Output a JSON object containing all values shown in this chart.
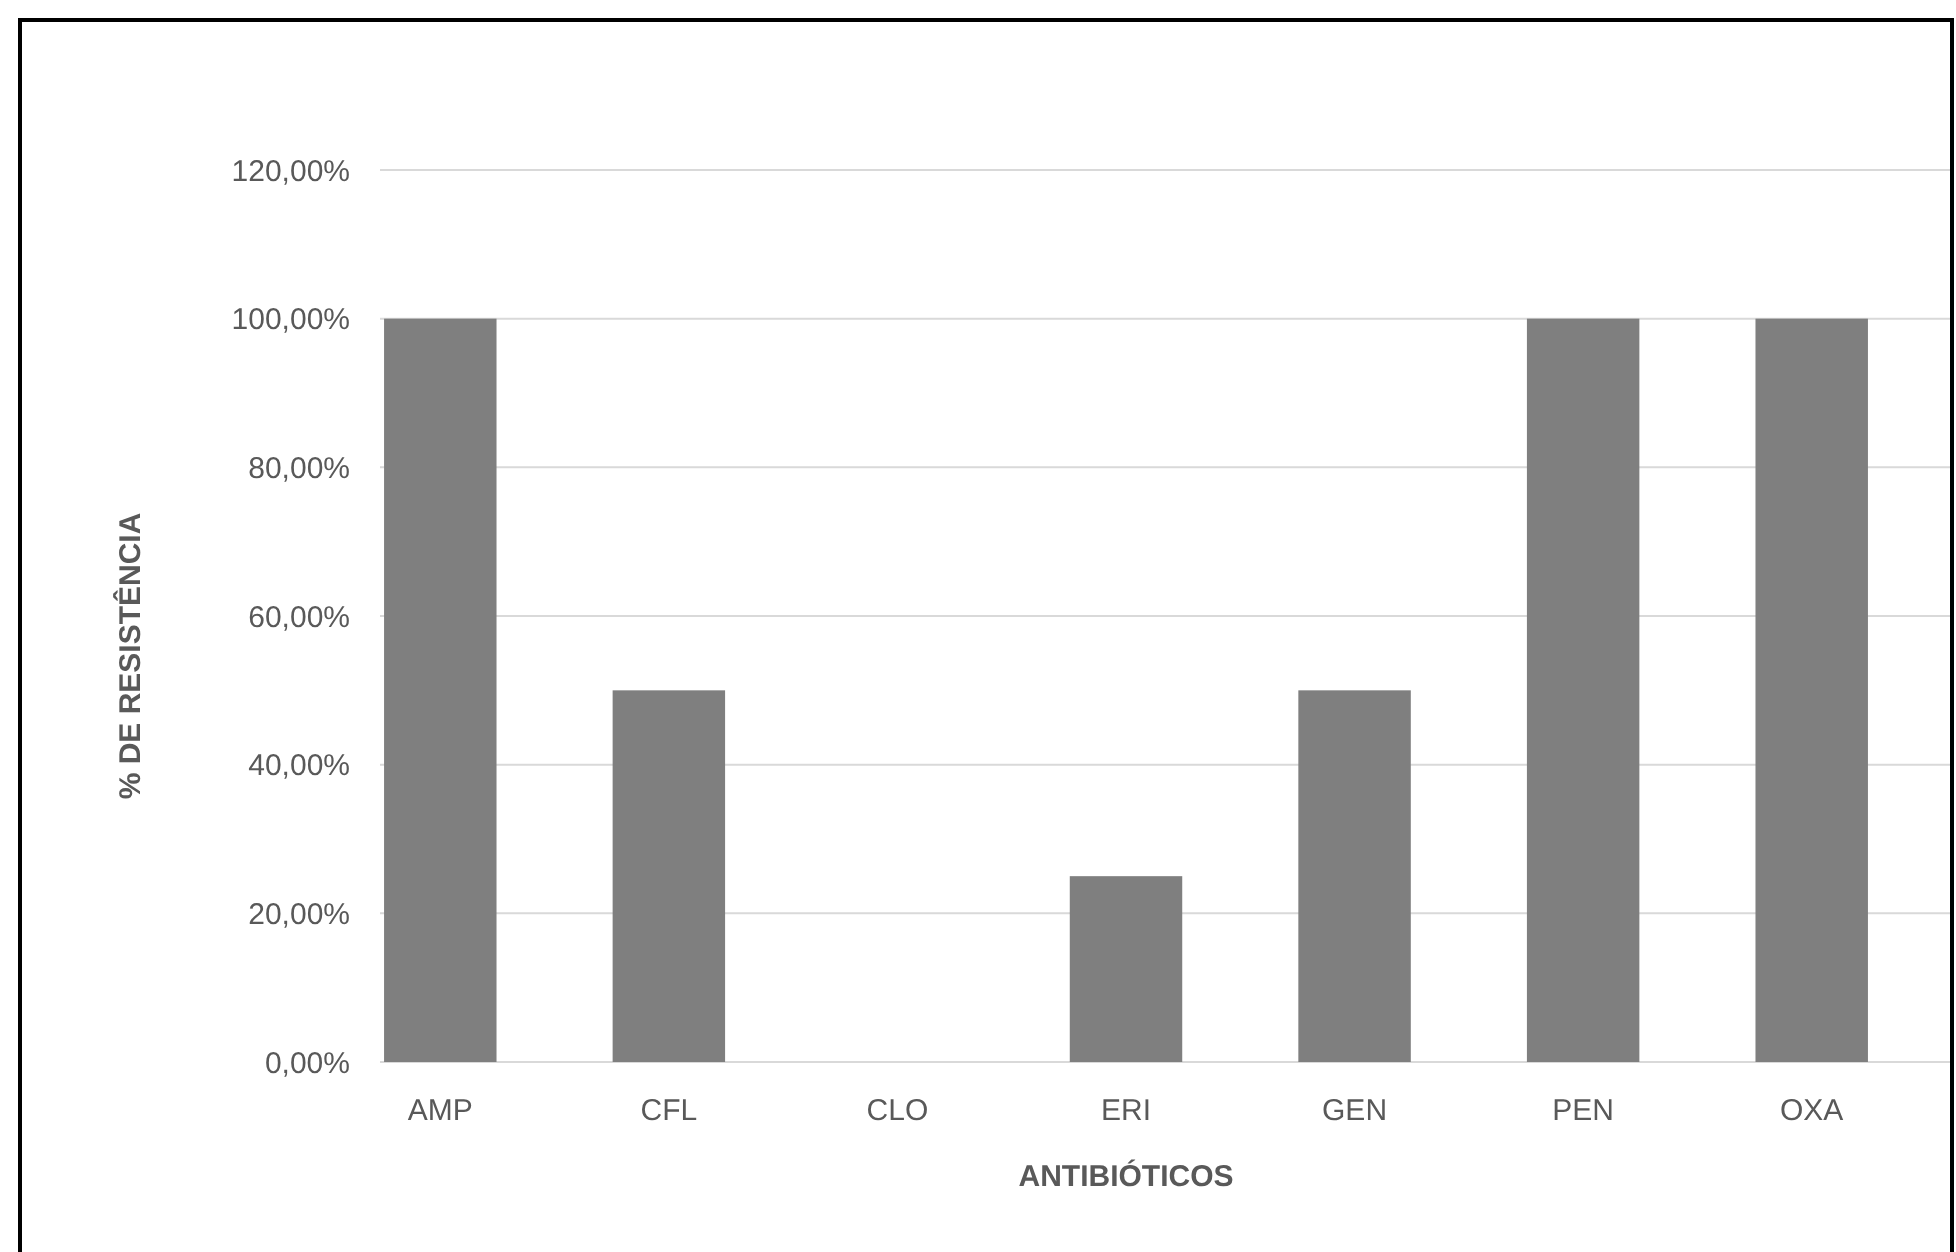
{
  "chart_data": {
    "type": "bar",
    "xlabel": "ANTIBIÓTICOS",
    "ylabel": "% DE RESISTÊNCIA",
    "categories": [
      "AMP",
      "CFL",
      "CLO",
      "ERI",
      "GEN",
      "PEN",
      "OXA"
    ],
    "values": [
      100,
      50,
      0,
      25,
      50,
      100,
      100
    ],
    "color": "#7f7f7f",
    "ylim": [
      0,
      120
    ],
    "yticks": [
      {
        "value": 0,
        "label": "0,00%"
      },
      {
        "value": 20,
        "label": "20,00%"
      },
      {
        "value": 40,
        "label": "40,00%"
      },
      {
        "value": 60,
        "label": "60,00%"
      },
      {
        "value": 80,
        "label": "80,00%"
      },
      {
        "value": 100,
        "label": "100,00%"
      },
      {
        "value": 120,
        "label": "120,00%"
      }
    ],
    "grid": "y"
  }
}
